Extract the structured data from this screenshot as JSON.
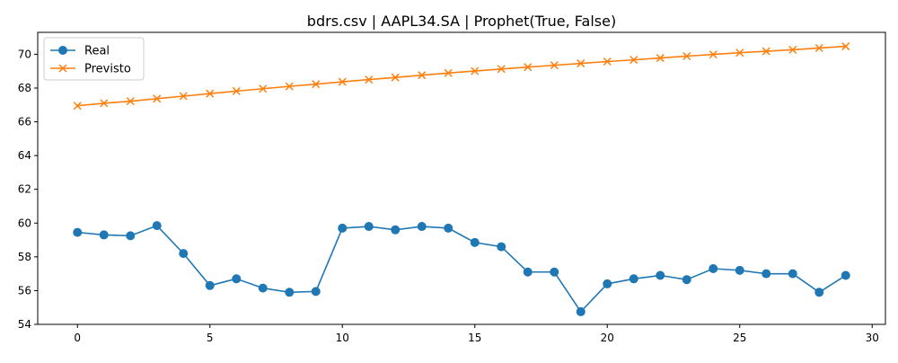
{
  "chart_data": {
    "type": "line",
    "title": "bdrs.csv | AAPL34.SA | Prophet(True, False)",
    "xlabel": "",
    "ylabel": "",
    "xlim": [
      -1.5,
      30.5
    ],
    "ylim": [
      54,
      71.3
    ],
    "xticks": [
      0,
      5,
      10,
      15,
      20,
      25,
      30
    ],
    "yticks": [
      54,
      56,
      58,
      60,
      62,
      64,
      66,
      68,
      70
    ],
    "grid": false,
    "legend_position": "top-left",
    "x": [
      0,
      1,
      2,
      3,
      4,
      5,
      6,
      7,
      8,
      9,
      10,
      11,
      12,
      13,
      14,
      15,
      16,
      17,
      18,
      19,
      20,
      21,
      22,
      23,
      24,
      25,
      26,
      27,
      28,
      29
    ],
    "series": [
      {
        "name": "Real",
        "color": "#1f77b4",
        "marker": "circle",
        "values": [
          59.45,
          59.3,
          59.25,
          59.85,
          58.2,
          56.3,
          56.7,
          56.15,
          55.9,
          55.95,
          59.7,
          59.8,
          59.6,
          59.8,
          59.7,
          58.85,
          58.6,
          57.1,
          57.1,
          54.75,
          56.4,
          56.7,
          56.9,
          56.65,
          57.3,
          57.2,
          57.0,
          57.0,
          55.9,
          56.9
        ]
      },
      {
        "name": "Previsto",
        "color": "#ff7f0e",
        "marker": "x",
        "values": [
          66.95,
          67.1,
          67.22,
          67.37,
          67.52,
          67.67,
          67.82,
          67.96,
          68.1,
          68.23,
          68.37,
          68.5,
          68.63,
          68.76,
          68.89,
          69.01,
          69.13,
          69.24,
          69.35,
          69.46,
          69.57,
          69.67,
          69.78,
          69.89,
          69.99,
          70.09,
          70.18,
          70.27,
          70.37,
          70.47
        ]
      }
    ]
  }
}
